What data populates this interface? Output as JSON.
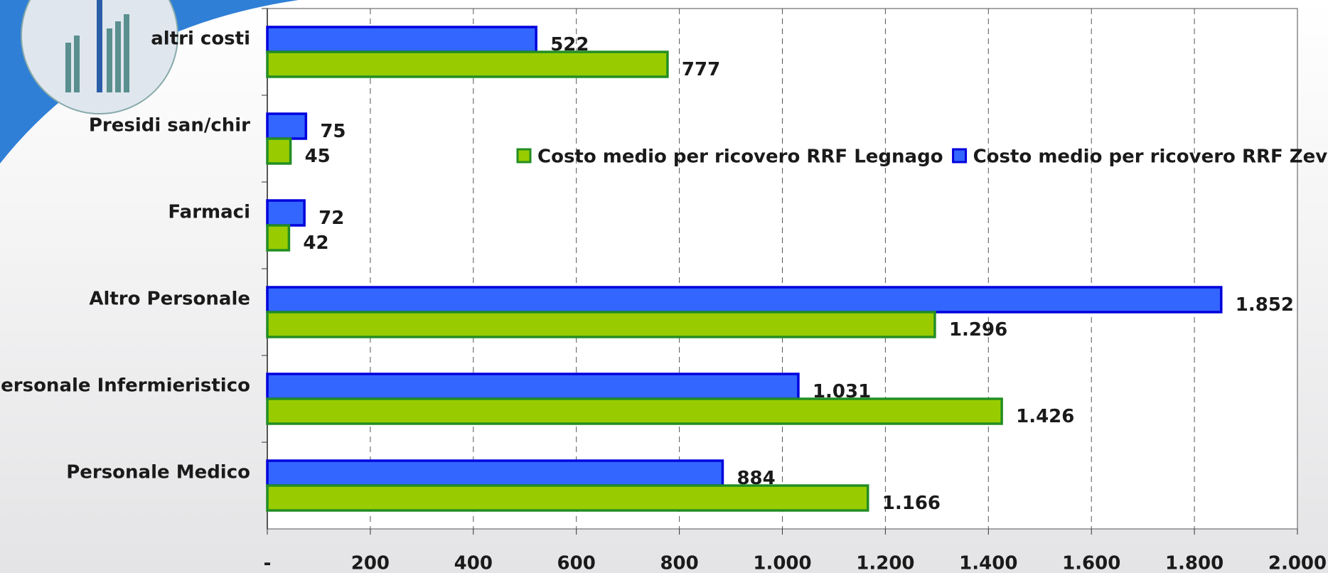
{
  "chart_data": {
    "type": "hbar",
    "categories": [
      "altri costi",
      "Presidi san/chir",
      "Farmaci",
      "Altro Personale",
      "Personale Infermieristico",
      "Personale Medico"
    ],
    "series": [
      {
        "name": "Costo medio per ricovero RRF Legnago",
        "color": "#99cc00",
        "edge": "#238e23",
        "values": [
          777,
          45,
          42,
          1296,
          1426,
          1166
        ],
        "value_labels": [
          "777",
          "45",
          "42",
          "1.296",
          "1.426",
          "1.166"
        ]
      },
      {
        "name": "Costo medio per ricovero RRF Zevio",
        "color": "#3366ff",
        "edge": "#0000dd",
        "values": [
          522,
          75,
          72,
          1852,
          1031,
          884
        ],
        "value_labels": [
          "522",
          "75",
          "72",
          "1.852",
          "1.031",
          "884"
        ]
      }
    ],
    "xlim": [
      0,
      2000
    ],
    "xticks": [
      {
        "value": 0,
        "label": "-"
      },
      200,
      400,
      600,
      800,
      {
        "value": 1000,
        "label": "1.000"
      },
      {
        "value": 1200,
        "label": "1.200"
      },
      {
        "value": 1400,
        "label": "1.400"
      },
      {
        "value": 1600,
        "label": "1.600"
      },
      {
        "value": 1800,
        "label": "1.800"
      },
      {
        "value": 2000,
        "label": "2.000"
      }
    ],
    "grid": true
  }
}
